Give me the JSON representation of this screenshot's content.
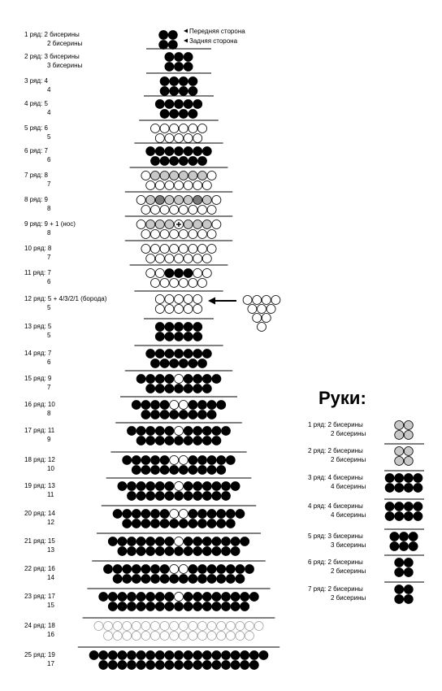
{
  "colors": {
    "B": "#000000",
    "W": "#ffffff",
    "G": "#c8c8c8",
    "D": "#7a7a7a",
    "L": "#ffffff"
  },
  "front_back": {
    "front": "Передняя сторона",
    "back": "Задняя сторона"
  },
  "body_rows": [
    {
      "id": "r1",
      "line1": "1 ряд: 2 бисерины",
      "line2": "2 бисерины",
      "front": "BB",
      "back": "BB"
    },
    {
      "id": "r2",
      "line1": "2 ряд: 3 бисерины",
      "line2": "3 бисерины",
      "front": "BBB",
      "back": "BBB"
    },
    {
      "id": "r3",
      "line1": "3 ряд: 4",
      "line2": "4",
      "front": "BBBB",
      "back": "BBBB"
    },
    {
      "id": "r4",
      "line1": "4 ряд: 5",
      "line2": "4",
      "front": "BBBBB",
      "back": "BBBB"
    },
    {
      "id": "r5",
      "line1": "5 ряд: 6",
      "line2": "5",
      "front": "WWWWWW",
      "back": "WWWWW"
    },
    {
      "id": "r6",
      "line1": "6 ряд: 7",
      "line2": "6",
      "front": "BBBBBBB",
      "back": "BBBBBB"
    },
    {
      "id": "r7",
      "line1": "7 ряд: 8",
      "line2": "7",
      "front": "WGGGGGGW",
      "back": "WWWWWWW"
    },
    {
      "id": "r8",
      "line1": "8 ряд: 9",
      "line2": "8",
      "front": "WGDGGGDGW",
      "back": "WWWWWWWW"
    },
    {
      "id": "r9",
      "line1": "9 ряд: 9 + 1 (нос)",
      "line2": "8",
      "front": "WGGGNGGGW",
      "back": "WWWWWWWW"
    },
    {
      "id": "r10",
      "line1": "10 ряд: 8",
      "line2": "7",
      "front": "WWWWWWWW",
      "back": "WWWWWWW"
    },
    {
      "id": "r11",
      "line1": "11 ряд: 7",
      "line2": "6",
      "front": "WWBBBWW",
      "back": "WWWWWW"
    },
    {
      "id": "r12",
      "line1": "12 ряд: 5 + 4/3/2/1 (борода)",
      "line2": "5",
      "front": "WWWWW",
      "back": "WWWWW"
    },
    {
      "id": "r13",
      "line1": "13 ряд: 5",
      "line2": "5",
      "front": "BBBBB",
      "back": "BBBBB"
    },
    {
      "id": "r14",
      "line1": "14 ряд: 7",
      "line2": "6",
      "front": "BBBBBBB",
      "back": "BBBBBB"
    },
    {
      "id": "r15",
      "line1": "15 ряд: 9",
      "line2": "7",
      "front": "BBBBWBBBB",
      "back": "BBBBBBB"
    },
    {
      "id": "r16",
      "line1": "16 ряд: 10",
      "line2": "8",
      "front": "BBBBWWBBBB",
      "back": "BBBBBBBB"
    },
    {
      "id": "r17",
      "line1": "17 ряд: 11",
      "line2": "9",
      "front": "BBBBBWBBBBB",
      "back": "BBBBBBBBB"
    },
    {
      "id": "r18",
      "line1": "18 ряд: 12",
      "line2": "10",
      "front": "BBBBBWWBBBBB",
      "back": "BBBBBBBBBB"
    },
    {
      "id": "r19",
      "line1": "19 ряд: 13",
      "line2": "11",
      "front": "BBBBBBWBBBBBB",
      "back": "BBBBBBBBBBB"
    },
    {
      "id": "r20",
      "line1": "20 ряд: 14",
      "line2": "12",
      "front": "BBBBBBWWBBBBBB",
      "back": "BBBBBBBBBBBB"
    },
    {
      "id": "r21",
      "line1": "21 ряд: 15",
      "line2": "13",
      "front": "BBBBBBBWBBBBBBB",
      "back": "BBBBBBBBBBBBB"
    },
    {
      "id": "r22",
      "line1": "22 ряд: 16",
      "line2": "14",
      "front": "BBBBBBBWWBBBBBBB",
      "back": "BBBBBBBBBBBBBB"
    },
    {
      "id": "r23",
      "line1": "23 ряд: 17",
      "line2": "15",
      "front": "BBBBBBBBWBBBBBBBB",
      "back": "BBBBBBBBBBBBBBB"
    },
    {
      "id": "r24",
      "line1": "24 ряд: 18",
      "line2": "16",
      "front": "LLLLLLLLLLLLLLLLLL",
      "back": "LLLLLLLLLLLLLLLL"
    },
    {
      "id": "r25",
      "line1": "25 ряд: 19",
      "line2": "17",
      "front": "BBBBBBBBBBBBBBBBBBB",
      "back": "BBBBBBBBBBBBBBBBB"
    }
  ],
  "beard": [
    4,
    3,
    2,
    1
  ],
  "arms": {
    "title": "Руки:",
    "rows": [
      {
        "id": "a1",
        "line1": "1 ряд: 2 бисерины",
        "line2": "2 бисерины",
        "front": "GG",
        "back": "GG"
      },
      {
        "id": "a2",
        "line1": "2 ряд: 2 бисерины",
        "line2": "2 бисерины",
        "front": "GG",
        "back": "GG"
      },
      {
        "id": "a3",
        "line1": "3 ряд: 4 бисерины",
        "line2": "4 бисерины",
        "front": "BBBB",
        "back": "BBBB"
      },
      {
        "id": "a4",
        "line1": "4 ряд: 4 бисерины",
        "line2": "4 бисерины",
        "front": "BBBB",
        "back": "BBBB"
      },
      {
        "id": "a5",
        "line1": "5 ряд: 3 бисерины",
        "line2": "3 бисерины",
        "front": "BBB",
        "back": "BBB"
      },
      {
        "id": "a6",
        "line1": "6 ряд: 2 бисерины",
        "line2": "2 бисерины",
        "front": "BB",
        "back": "BB"
      },
      {
        "id": "a7",
        "line1": "7 ряд: 2 бисерины",
        "line2": "2 бисерины",
        "front": "BB",
        "back": "BB"
      }
    ]
  }
}
